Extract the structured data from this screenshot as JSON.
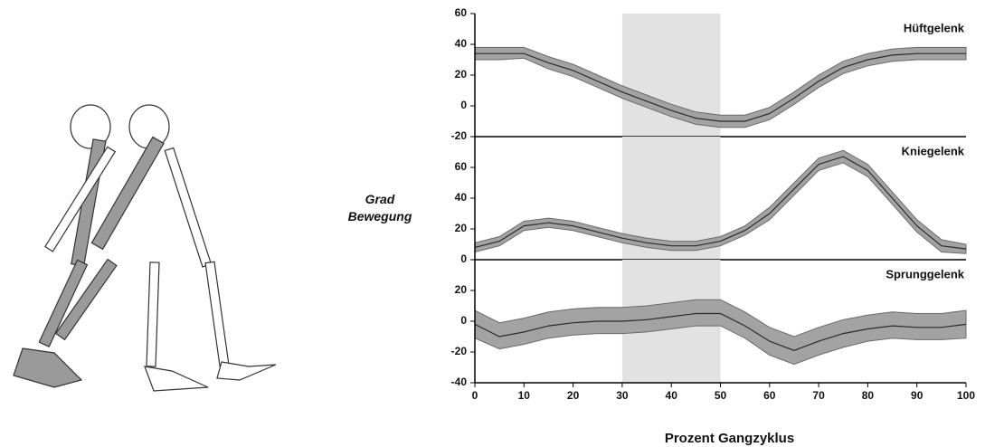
{
  "chart_data": [
    {
      "type": "band-line",
      "title": "Hüftgelenk",
      "x": [
        0,
        5,
        10,
        15,
        20,
        25,
        30,
        35,
        40,
        45,
        50,
        55,
        60,
        65,
        70,
        75,
        80,
        85,
        90,
        95,
        100
      ],
      "values": [
        34,
        34,
        34,
        28,
        23,
        16,
        9,
        3,
        -3,
        -8,
        -10,
        -10,
        -5,
        5,
        16,
        25,
        30,
        33,
        34,
        34,
        34
      ],
      "lower": [
        30,
        30,
        31,
        24,
        19,
        12,
        5,
        -1,
        -7,
        -12,
        -14,
        -14,
        -9,
        1,
        12,
        21,
        26,
        29,
        30,
        30,
        30
      ],
      "upper": [
        38,
        38,
        38,
        32,
        27,
        20,
        13,
        7,
        1,
        -4,
        -6,
        -6,
        -1,
        9,
        20,
        29,
        34,
        37,
        38,
        38,
        38
      ],
      "xlim": [
        0,
        100
      ],
      "ylim": [
        -20,
        60
      ],
      "yticks": [
        -20,
        0,
        20,
        40,
        60
      ],
      "highlight": [
        30,
        50
      ],
      "band_color": "#a3a3a3",
      "line_color": "#2b2b2b",
      "highlight_color": "#e2e2e2"
    },
    {
      "type": "band-line",
      "title": "Kniegelenk",
      "ylabel": "Grad Bewegung",
      "x": [
        0,
        5,
        10,
        15,
        20,
        25,
        30,
        35,
        40,
        45,
        50,
        55,
        60,
        65,
        70,
        75,
        80,
        85,
        90,
        95,
        100
      ],
      "values": [
        8,
        12,
        22,
        24,
        22,
        18,
        14,
        11,
        9,
        9,
        12,
        19,
        30,
        46,
        62,
        67,
        58,
        40,
        22,
        9,
        7
      ],
      "lower": [
        5,
        9,
        19,
        21,
        19,
        15,
        11,
        8,
        6,
        6,
        9,
        16,
        26,
        42,
        58,
        63,
        54,
        36,
        18,
        5,
        4
      ],
      "upper": [
        11,
        15,
        25,
        27,
        25,
        21,
        17,
        14,
        12,
        12,
        15,
        22,
        34,
        50,
        66,
        71,
        62,
        44,
        26,
        13,
        10
      ],
      "xlim": [
        0,
        100
      ],
      "ylim": [
        0,
        80
      ],
      "yticks": [
        0,
        20,
        40,
        60
      ],
      "highlight": [
        30,
        50
      ],
      "band_color": "#a3a3a3",
      "line_color": "#2b2b2b",
      "highlight_color": "#e2e2e2"
    },
    {
      "type": "band-line",
      "title": "Sprunggelenk",
      "xlabel": "Prozent Gangzyklus",
      "x": [
        0,
        5,
        10,
        15,
        20,
        25,
        30,
        35,
        40,
        45,
        50,
        55,
        60,
        65,
        70,
        75,
        80,
        85,
        90,
        95,
        100
      ],
      "values": [
        -2,
        -10,
        -7,
        -3,
        -1,
        0,
        0,
        1,
        3,
        5,
        5,
        -3,
        -13,
        -19,
        -13,
        -8,
        -5,
        -3,
        -4,
        -4,
        -2
      ],
      "lower": [
        -11,
        -18,
        -15,
        -11,
        -9,
        -8,
        -8,
        -7,
        -5,
        -3,
        -3,
        -11,
        -22,
        -28,
        -22,
        -17,
        -13,
        -11,
        -12,
        -12,
        -11
      ],
      "upper": [
        7,
        -1,
        2,
        6,
        8,
        9,
        9,
        10,
        12,
        14,
        14,
        6,
        -4,
        -10,
        -4,
        1,
        4,
        6,
        5,
        5,
        7
      ],
      "xlim": [
        0,
        100
      ],
      "xticks": [
        0,
        10,
        20,
        30,
        40,
        50,
        60,
        70,
        80,
        90,
        100
      ],
      "ylim": [
        -40,
        40
      ],
      "yticks": [
        -40,
        -20,
        0,
        20
      ],
      "highlight": [
        30,
        50
      ],
      "band_color": "#a3a3a3",
      "line_color": "#2b2b2b",
      "highlight_color": "#e2e2e2"
    }
  ]
}
